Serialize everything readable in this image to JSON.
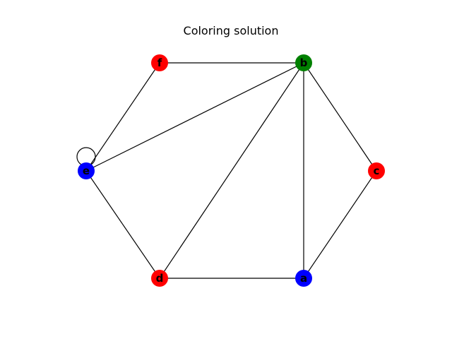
{
  "title": "Coloring solution",
  "colors": {
    "red": "#ff0000",
    "green": "#008000",
    "blue": "#0000ff"
  },
  "graph": {
    "nodes": [
      {
        "id": "a",
        "label": "a",
        "color": "#0000ff"
      },
      {
        "id": "b",
        "label": "b",
        "color": "#008000"
      },
      {
        "id": "c",
        "label": "c",
        "color": "#ff0000"
      },
      {
        "id": "d",
        "label": "d",
        "color": "#ff0000"
      },
      {
        "id": "e",
        "label": "e",
        "color": "#0000ff"
      },
      {
        "id": "f",
        "label": "f",
        "color": "#ff0000"
      }
    ],
    "edges": [
      [
        "f",
        "b"
      ],
      [
        "f",
        "e"
      ],
      [
        "b",
        "e"
      ],
      [
        "b",
        "d"
      ],
      [
        "b",
        "a"
      ],
      [
        "b",
        "c"
      ],
      [
        "c",
        "a"
      ],
      [
        "e",
        "d"
      ],
      [
        "d",
        "a"
      ],
      [
        "e",
        "e"
      ]
    ]
  }
}
